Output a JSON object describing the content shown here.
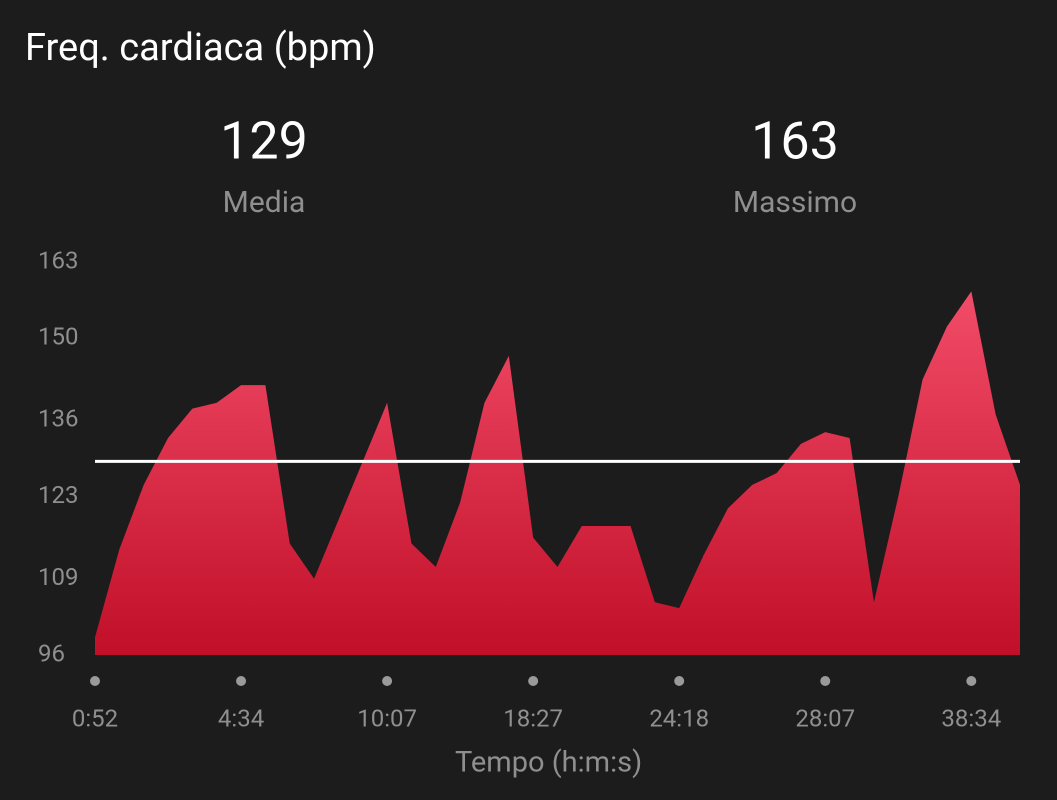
{
  "chart_data": {
    "type": "area",
    "title": "Freq. cardiaca (bpm)",
    "x_label": "Tempo (h:m:s)",
    "stats": [
      {
        "value": 129,
        "label": "Media"
      },
      {
        "value": 163,
        "label": "Massimo"
      }
    ],
    "categories": [
      "0:52",
      null,
      null,
      null,
      null,
      null,
      "4:34",
      null,
      null,
      null,
      null,
      null,
      "10:07",
      null,
      null,
      null,
      null,
      null,
      "18:27",
      null,
      null,
      null,
      null,
      null,
      "24:18",
      null,
      null,
      null,
      null,
      null,
      "28:07",
      null,
      null,
      null,
      null,
      null,
      "38:34",
      null,
      null
    ],
    "values": [
      99,
      114,
      125,
      133,
      138,
      139,
      142,
      142,
      115,
      109,
      119,
      129,
      139,
      115,
      111,
      122,
      139,
      147,
      116,
      111,
      118,
      118,
      118,
      105,
      104,
      113,
      121,
      125,
      127,
      132,
      134,
      133,
      105,
      123,
      143,
      152,
      158,
      137,
      125
    ],
    "color_top": "#f24c68",
    "color_bottom": "#c10f29",
    "ylim": [
      96,
      163
    ],
    "yticks": [
      96,
      109,
      123,
      136,
      150,
      163
    ]
  }
}
